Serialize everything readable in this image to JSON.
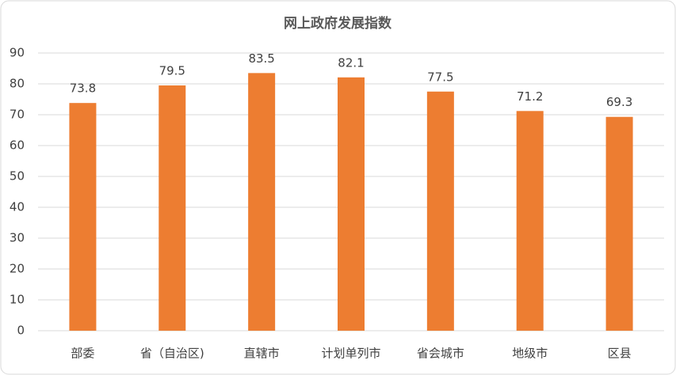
{
  "chart_data": {
    "type": "bar",
    "title": "网上政府发展指数",
    "categories": [
      "部委",
      "省（自治区)",
      "直辖市",
      "计划单列市",
      "省会城市",
      "地级市",
      "区县"
    ],
    "values": [
      73.8,
      79.5,
      83.5,
      82.1,
      77.5,
      71.2,
      69.3
    ],
    "color": "#ed7d31",
    "ylim": [
      0,
      90
    ],
    "yticks": [
      0,
      10,
      20,
      30,
      40,
      50,
      60,
      70,
      80,
      90
    ],
    "grid": true
  }
}
